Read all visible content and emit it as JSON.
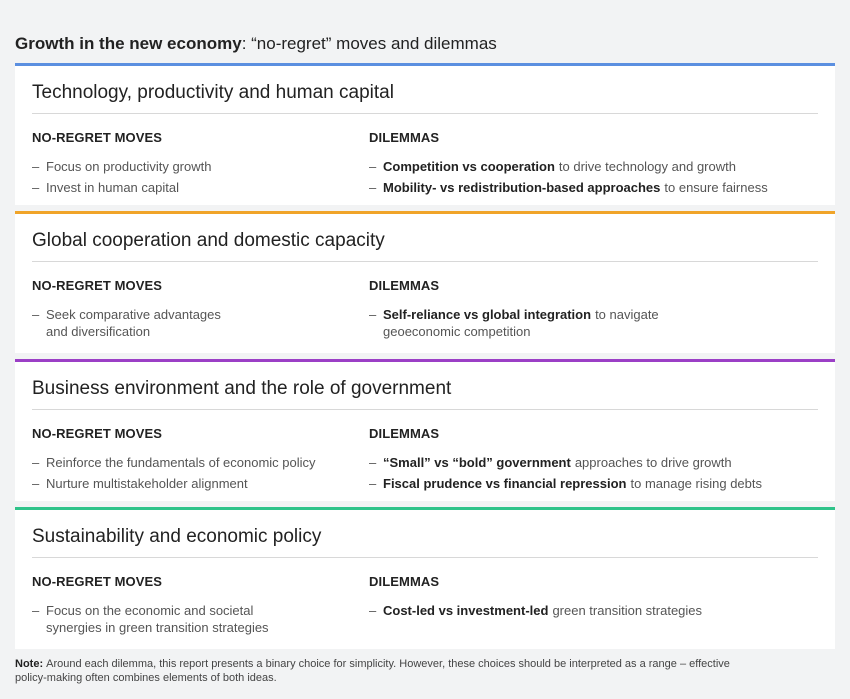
{
  "title": {
    "bold": "Growth in the new economy",
    "rest": ": “no-regret” moves and dilemmas"
  },
  "sections": [
    {
      "heading": "Technology, productivity and human capital",
      "color": "#5b8fe0",
      "moves_label": "NO-REGRET MOVES",
      "dilemmas_label": "DILEMMAS",
      "moves": [
        [
          "Focus on productivity growth"
        ],
        [
          "Invest in human capital"
        ]
      ],
      "dilemmas": [
        {
          "bold": "Competition vs cooperation",
          "rest": [
            "to drive technology and growth"
          ]
        },
        {
          "bold": "Mobility- vs redistribution-based approaches",
          "rest": [
            "to ensure fairness"
          ]
        }
      ]
    },
    {
      "heading": "Global cooperation and domestic capacity",
      "color": "#f0a429",
      "moves_label": "NO-REGRET MOVES",
      "dilemmas_label": "DILEMMAS",
      "moves": [
        [
          "Seek comparative advantages",
          "and diversification"
        ]
      ],
      "dilemmas": [
        {
          "bold": "Self-reliance vs global integration",
          "rest": [
            "to navigate",
            "geoeconomic competition"
          ]
        }
      ]
    },
    {
      "heading": "Business environment and the role of government",
      "color": "#9b3fc6",
      "moves_label": "NO-REGRET MOVES",
      "dilemmas_label": "DILEMMAS",
      "moves": [
        [
          "Reinforce the fundamentals of economic policy"
        ],
        [
          "Nurture multistakeholder alignment"
        ]
      ],
      "dilemmas": [
        {
          "bold": "“Small” vs “bold” government",
          "rest": [
            "approaches to drive growth"
          ]
        },
        {
          "bold": "Fiscal prudence vs financial repression",
          "rest": [
            "to manage rising debts"
          ]
        }
      ]
    },
    {
      "heading": "Sustainability and economic policy",
      "color": "#2fc38a",
      "moves_label": "NO-REGRET MOVES",
      "dilemmas_label": "DILEMMAS",
      "moves": [
        [
          "Focus on the economic and societal",
          "synergies in green transition strategies"
        ]
      ],
      "dilemmas": [
        {
          "bold": "Cost-led vs investment-led",
          "rest": [
            "green transition strategies"
          ]
        }
      ]
    }
  ],
  "note": {
    "label": "Note:",
    "text": "Around each dilemma, this report presents a binary choice for simplicity. However, these choices should be interpreted as a range – effective policy-making often combines elements of both ideas."
  }
}
